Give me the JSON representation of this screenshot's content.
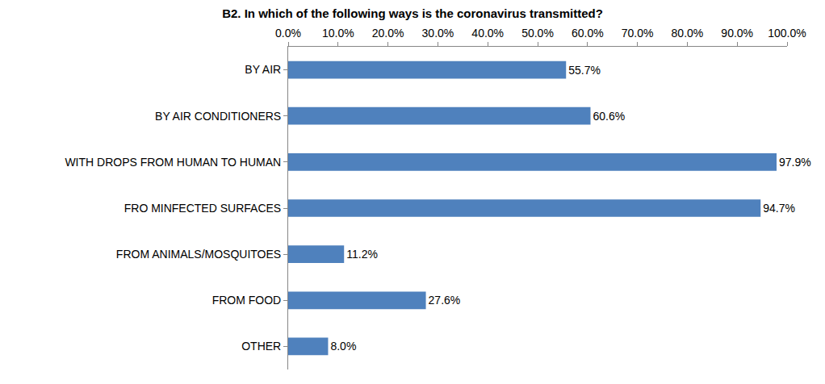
{
  "chart_data": {
    "type": "bar",
    "orientation": "horizontal",
    "title": "B2. In which of the following ways is the coronavirus transmitted?",
    "categories": [
      "BY AIR",
      "BY AIR CONDITIONERS",
      "WITH DROPS FROM HUMAN TO HUMAN",
      "FRO MINFECTED SURFACES",
      "FROM ANIMALS/MOSQUITOES",
      "FROM FOOD",
      "OTHER"
    ],
    "values": [
      55.7,
      60.6,
      97.9,
      94.7,
      11.2,
      27.6,
      8.0
    ],
    "value_labels": [
      "55.7%",
      "60.6%",
      "97.9%",
      "94.7%",
      "11.2%",
      "27.6%",
      "8.0%"
    ],
    "data_labels": true,
    "color": "#4f81bd",
    "xlim": [
      0,
      100
    ],
    "xticks": [
      {
        "value": 0,
        "label": "0.0%"
      },
      {
        "value": 10,
        "label": "10.0%"
      },
      {
        "value": 20,
        "label": "20.0%"
      },
      {
        "value": 30,
        "label": "30.0%"
      },
      {
        "value": 40,
        "label": "40.0%"
      },
      {
        "value": 50,
        "label": "50.0%"
      },
      {
        "value": 60,
        "label": "60.0%"
      },
      {
        "value": 70,
        "label": "70.0%"
      },
      {
        "value": 80,
        "label": "80.0%"
      },
      {
        "value": 90,
        "label": "90.0%"
      },
      {
        "value": 100,
        "label": "100.0%"
      }
    ],
    "grid": false
  }
}
